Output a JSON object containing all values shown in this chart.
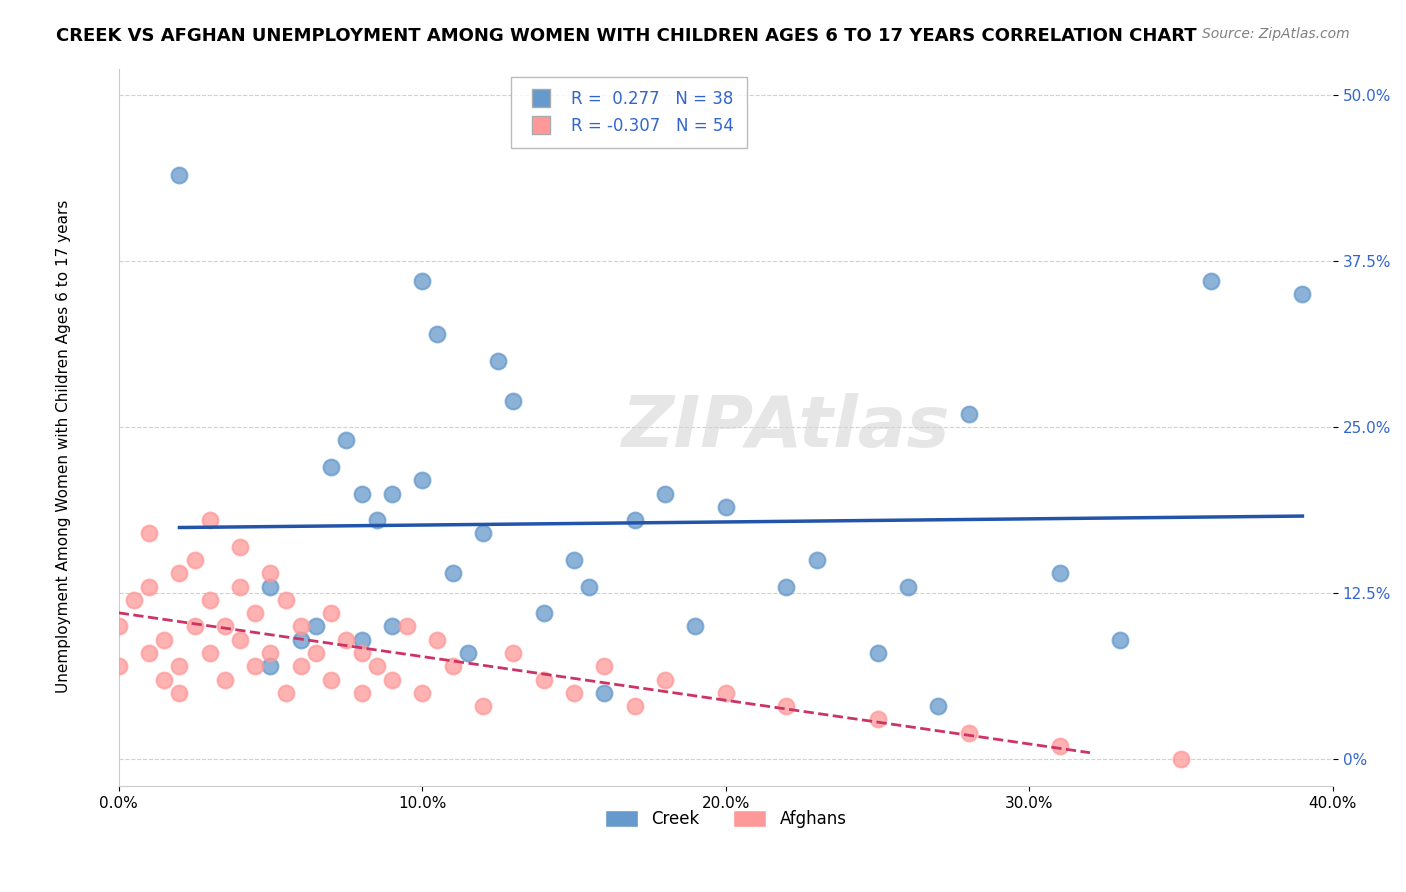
{
  "title": "CREEK VS AFGHAN UNEMPLOYMENT AMONG WOMEN WITH CHILDREN AGES 6 TO 17 YEARS CORRELATION CHART",
  "source_text": "Source: ZipAtlas.com",
  "ylabel": "Unemployment Among Women with Children Ages 6 to 17 years",
  "xlabel": "",
  "xlim": [
    0.0,
    0.4
  ],
  "ylim": [
    -0.02,
    0.52
  ],
  "xtick_labels": [
    "0.0%",
    "10.0%",
    "20.0%",
    "30.0%",
    "40.0%"
  ],
  "xtick_values": [
    0.0,
    0.1,
    0.2,
    0.3,
    0.4
  ],
  "ytick_labels": [
    "0%",
    "12.5%",
    "25.0%",
    "37.5%",
    "50.0%"
  ],
  "ytick_values": [
    0.0,
    0.125,
    0.25,
    0.375,
    0.5
  ],
  "creek_color": "#6699CC",
  "afghan_color": "#FF9999",
  "creek_line_color": "#2255AA",
  "afghan_line_color": "#CC3366",
  "creek_R": 0.277,
  "creek_N": 38,
  "afghan_R": -0.307,
  "afghan_N": 54,
  "watermark": "ZIPAtlas",
  "grid_color": "#CCCCCC",
  "creek_scatter_x": [
    0.02,
    0.05,
    0.05,
    0.06,
    0.065,
    0.07,
    0.075,
    0.08,
    0.08,
    0.085,
    0.09,
    0.09,
    0.1,
    0.1,
    0.105,
    0.11,
    0.115,
    0.12,
    0.125,
    0.13,
    0.14,
    0.15,
    0.155,
    0.16,
    0.17,
    0.18,
    0.19,
    0.2,
    0.22,
    0.23,
    0.25,
    0.26,
    0.27,
    0.28,
    0.31,
    0.33,
    0.36,
    0.39
  ],
  "creek_scatter_y": [
    0.44,
    0.07,
    0.13,
    0.09,
    0.1,
    0.22,
    0.24,
    0.09,
    0.2,
    0.18,
    0.1,
    0.2,
    0.21,
    0.36,
    0.32,
    0.14,
    0.08,
    0.17,
    0.3,
    0.27,
    0.11,
    0.15,
    0.13,
    0.05,
    0.18,
    0.2,
    0.1,
    0.19,
    0.13,
    0.15,
    0.08,
    0.13,
    0.04,
    0.26,
    0.14,
    0.09,
    0.36,
    0.35
  ],
  "afghan_scatter_x": [
    0.0,
    0.0,
    0.005,
    0.01,
    0.01,
    0.01,
    0.015,
    0.015,
    0.02,
    0.02,
    0.02,
    0.025,
    0.025,
    0.03,
    0.03,
    0.03,
    0.035,
    0.035,
    0.04,
    0.04,
    0.04,
    0.045,
    0.045,
    0.05,
    0.05,
    0.055,
    0.055,
    0.06,
    0.06,
    0.065,
    0.07,
    0.07,
    0.075,
    0.08,
    0.08,
    0.085,
    0.09,
    0.095,
    0.1,
    0.105,
    0.11,
    0.12,
    0.13,
    0.14,
    0.15,
    0.16,
    0.17,
    0.18,
    0.2,
    0.22,
    0.25,
    0.28,
    0.31,
    0.35
  ],
  "afghan_scatter_y": [
    0.1,
    0.07,
    0.12,
    0.08,
    0.13,
    0.17,
    0.06,
    0.09,
    0.05,
    0.07,
    0.14,
    0.1,
    0.15,
    0.08,
    0.12,
    0.18,
    0.06,
    0.1,
    0.09,
    0.13,
    0.16,
    0.07,
    0.11,
    0.08,
    0.14,
    0.05,
    0.12,
    0.07,
    0.1,
    0.08,
    0.06,
    0.11,
    0.09,
    0.05,
    0.08,
    0.07,
    0.06,
    0.1,
    0.05,
    0.09,
    0.07,
    0.04,
    0.08,
    0.06,
    0.05,
    0.07,
    0.04,
    0.06,
    0.05,
    0.04,
    0.03,
    0.02,
    0.01,
    0.0
  ]
}
